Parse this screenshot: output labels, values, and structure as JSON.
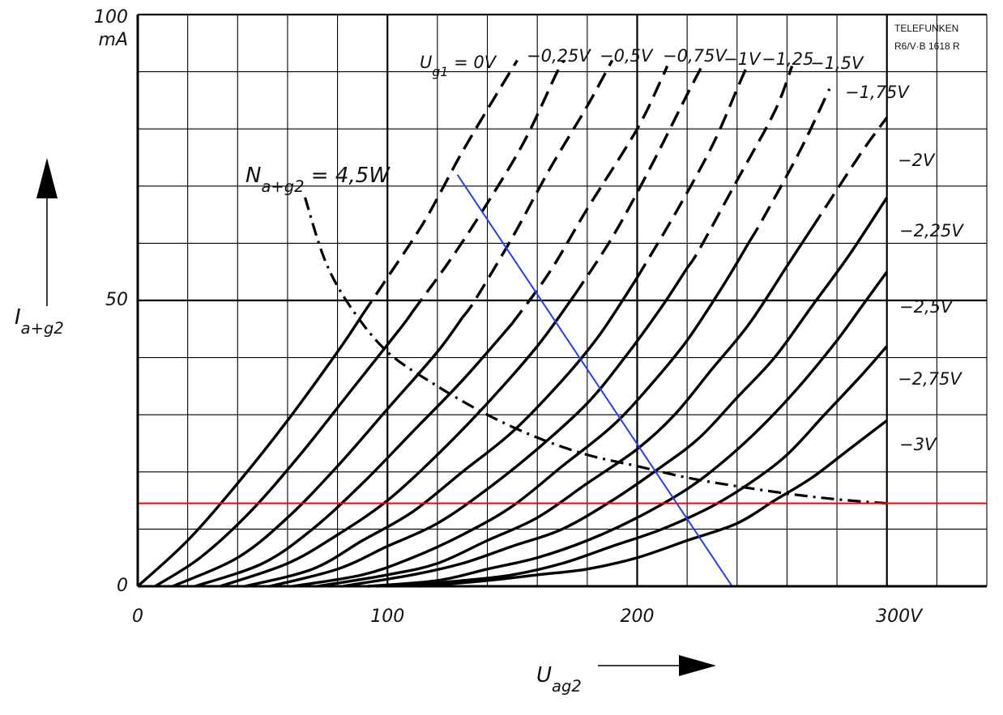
{
  "chart_data": {
    "type": "line",
    "manufacturer": [
      "TELEFUNKEN",
      "R6/V·B 1618 R"
    ],
    "xlabel": {
      "main": "U",
      "sub": "ag2"
    },
    "ylabel": {
      "main": "I",
      "sub": "a+g2"
    },
    "y_unit": "mA",
    "x_ticks": [
      {
        "value": 0,
        "label": "0"
      },
      {
        "value": 100,
        "label": "100"
      },
      {
        "value": 200,
        "label": "200"
      },
      {
        "value": 300,
        "label": "300V"
      }
    ],
    "y_ticks": [
      {
        "value": 0,
        "label": "0"
      },
      {
        "value": 50,
        "label": "50"
      },
      {
        "value": 100,
        "label": "100"
      }
    ],
    "xlim": [
      0,
      340
    ],
    "ylim": [
      0,
      100
    ],
    "grid": true,
    "series": [
      {
        "name": "U",
        "name_sub": "g1",
        "name_rest": " = 0V",
        "x0": 0,
        "points": [
          [
            0,
            0
          ],
          [
            20,
            8
          ],
          [
            40,
            18
          ],
          [
            60,
            29
          ],
          [
            80,
            41
          ],
          [
            100,
            54
          ],
          [
            115,
            64
          ],
          [
            130,
            76
          ],
          [
            145,
            87
          ],
          [
            152,
            92
          ]
        ]
      },
      {
        "name": "−0,25V",
        "x0": 7,
        "points": [
          [
            7,
            0
          ],
          [
            25,
            5
          ],
          [
            45,
            13
          ],
          [
            65,
            23
          ],
          [
            85,
            34
          ],
          [
            105,
            45
          ],
          [
            125,
            57
          ],
          [
            140,
            67
          ],
          [
            155,
            78
          ],
          [
            168,
            90
          ],
          [
            171,
            92
          ]
        ]
      },
      {
        "name": "−0,5V",
        "x0": 14,
        "points": [
          [
            14,
            0
          ],
          [
            40,
            5
          ],
          [
            60,
            12
          ],
          [
            80,
            21
          ],
          [
            100,
            31
          ],
          [
            120,
            41
          ],
          [
            135,
            50
          ],
          [
            150,
            61
          ],
          [
            165,
            73
          ],
          [
            180,
            84
          ],
          [
            190,
            92
          ]
        ]
      },
      {
        "name": "−0,75V",
        "x0": 23,
        "points": [
          [
            23,
            0
          ],
          [
            50,
            4
          ],
          [
            70,
            10
          ],
          [
            90,
            18
          ],
          [
            110,
            27
          ],
          [
            130,
            36
          ],
          [
            150,
            46
          ],
          [
            165,
            55
          ],
          [
            180,
            66
          ],
          [
            200,
            80
          ],
          [
            210,
            89
          ],
          [
            212,
            91
          ]
        ]
      },
      {
        "name": "−1V",
        "x0": 33,
        "points": [
          [
            33,
            0
          ],
          [
            60,
            4
          ],
          [
            80,
            9
          ],
          [
            100,
            15
          ],
          [
            120,
            23
          ],
          [
            140,
            32
          ],
          [
            160,
            42
          ],
          [
            175,
            51
          ],
          [
            190,
            61
          ],
          [
            205,
            73
          ],
          [
            220,
            86
          ],
          [
            226,
            91
          ]
        ]
      },
      {
        "name": "−1,25",
        "x0": 43,
        "points": [
          [
            43,
            0
          ],
          [
            70,
            3
          ],
          [
            90,
            8
          ],
          [
            110,
            13
          ],
          [
            130,
            20
          ],
          [
            150,
            27
          ],
          [
            170,
            36
          ],
          [
            185,
            44
          ],
          [
            200,
            54
          ],
          [
            215,
            65
          ],
          [
            230,
            77
          ],
          [
            240,
            87
          ],
          [
            244,
            91
          ]
        ]
      },
      {
        "name": "−1,5V",
        "x0": 53,
        "points": [
          [
            53,
            0
          ],
          [
            80,
            3
          ],
          [
            100,
            7
          ],
          [
            120,
            11
          ],
          [
            140,
            17
          ],
          [
            160,
            24
          ],
          [
            180,
            32
          ],
          [
            195,
            40
          ],
          [
            210,
            49
          ],
          [
            225,
            59
          ],
          [
            240,
            71
          ],
          [
            255,
            83
          ],
          [
            262,
            91
          ]
        ]
      },
      {
        "name": "−1,75V",
        "x0": 62,
        "points": [
          [
            62,
            0
          ],
          [
            90,
            2
          ],
          [
            110,
            5
          ],
          [
            130,
            9
          ],
          [
            150,
            14
          ],
          [
            170,
            21
          ],
          [
            190,
            28
          ],
          [
            205,
            35
          ],
          [
            220,
            43
          ],
          [
            235,
            53
          ],
          [
            250,
            64
          ],
          [
            265,
            76
          ],
          [
            277,
            87
          ]
        ]
      },
      {
        "name": "−2V",
        "x0": 72,
        "points": [
          [
            72,
            0
          ],
          [
            100,
            2
          ],
          [
            120,
            4
          ],
          [
            140,
            8
          ],
          [
            160,
            12
          ],
          [
            180,
            18
          ],
          [
            200,
            24
          ],
          [
            215,
            30
          ],
          [
            230,
            38
          ],
          [
            245,
            46
          ],
          [
            260,
            56
          ],
          [
            275,
            66
          ],
          [
            290,
            76
          ],
          [
            300,
            82
          ]
        ]
      },
      {
        "name": "−2,25V",
        "x0": 82,
        "points": [
          [
            82,
            0
          ],
          [
            110,
            2
          ],
          [
            130,
            4
          ],
          [
            150,
            7
          ],
          [
            170,
            10
          ],
          [
            190,
            15
          ],
          [
            210,
            21
          ],
          [
            225,
            26
          ],
          [
            240,
            33
          ],
          [
            255,
            40
          ],
          [
            270,
            49
          ],
          [
            285,
            58
          ],
          [
            300,
            68
          ]
        ]
      },
      {
        "name": "−2,5V",
        "x0": 92,
        "points": [
          [
            92,
            0
          ],
          [
            120,
            1
          ],
          [
            140,
            3
          ],
          [
            160,
            5
          ],
          [
            180,
            8
          ],
          [
            200,
            12
          ],
          [
            220,
            17
          ],
          [
            235,
            22
          ],
          [
            250,
            28
          ],
          [
            265,
            35
          ],
          [
            280,
            43
          ],
          [
            290,
            49
          ],
          [
            300,
            55
          ]
        ]
      },
      {
        "name": "−2,75V",
        "x0": 102,
        "points": [
          [
            102,
            0
          ],
          [
            130,
            1
          ],
          [
            150,
            2
          ],
          [
            170,
            4
          ],
          [
            190,
            7
          ],
          [
            210,
            10
          ],
          [
            230,
            14
          ],
          [
            245,
            18
          ],
          [
            260,
            23
          ],
          [
            275,
            30
          ],
          [
            290,
            37
          ],
          [
            300,
            42
          ]
        ]
      },
      {
        "name": "−3V",
        "x0": 113,
        "points": [
          [
            113,
            0
          ],
          [
            140,
            1
          ],
          [
            160,
            2
          ],
          [
            180,
            3
          ],
          [
            200,
            5
          ],
          [
            220,
            8
          ],
          [
            240,
            11
          ],
          [
            255,
            15
          ],
          [
            270,
            19
          ],
          [
            285,
            24
          ],
          [
            300,
            29
          ]
        ]
      }
    ],
    "solid_limit_x": [
      90,
      110,
      130,
      150,
      175,
      200,
      220,
      245,
      270,
      300,
      300,
      300,
      300
    ],
    "power_limit": {
      "label_main": "N",
      "label_sub": "a+g2",
      "label_rest": " = 4,5W",
      "points": [
        [
          67,
          68
        ],
        [
          75,
          57
        ],
        [
          85,
          49
        ],
        [
          100,
          41
        ],
        [
          120,
          35
        ],
        [
          140,
          30
        ],
        [
          160,
          26
        ],
        [
          180,
          23
        ],
        [
          200,
          21
        ],
        [
          220,
          19
        ],
        [
          240,
          17.5
        ],
        [
          260,
          16.2
        ],
        [
          280,
          15.2
        ],
        [
          300,
          14.5
        ]
      ]
    },
    "load_line": {
      "color": "#1f3fff",
      "points": [
        [
          128,
          72
        ],
        [
          238,
          0
        ]
      ]
    },
    "reference_line": {
      "color": "#ff0000",
      "y": 14.5,
      "x_range": [
        0,
        340
      ]
    }
  }
}
